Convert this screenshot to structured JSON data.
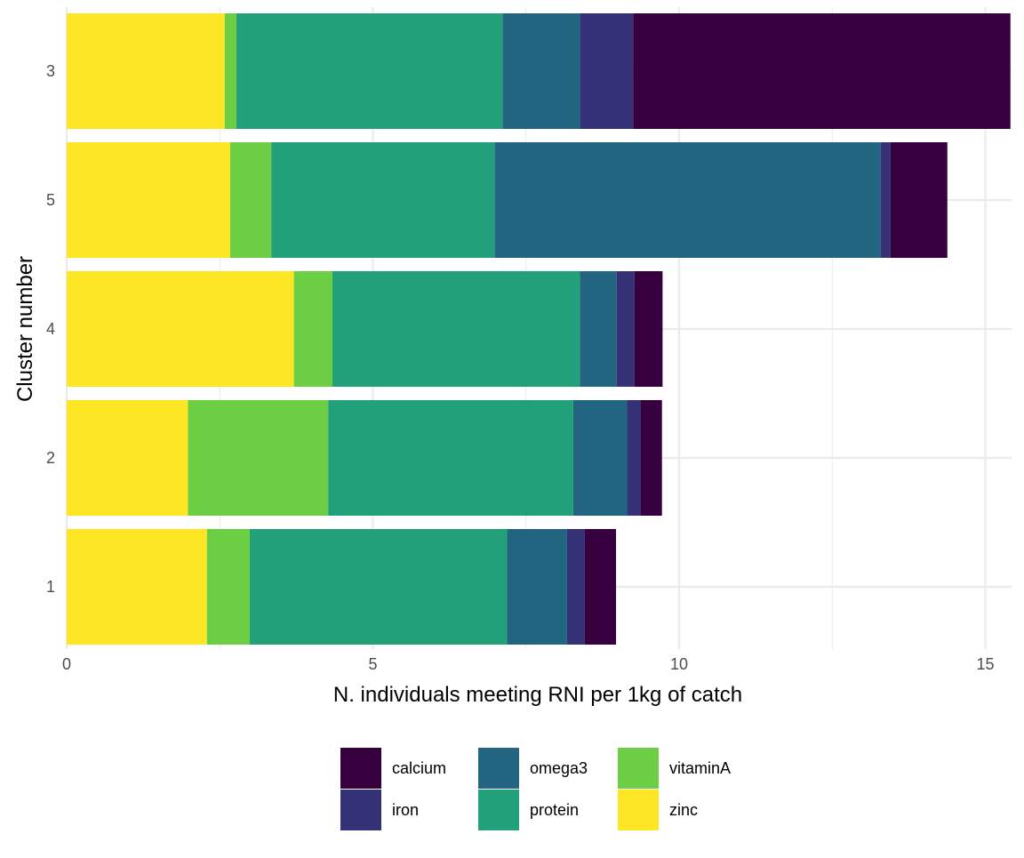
{
  "chart_data": {
    "type": "bar",
    "orientation": "horizontal",
    "stacked": true,
    "xlabel": "N. individuals meeting RNI per 1kg of catch",
    "ylabel": "Cluster number",
    "xlim": [
      0,
      15.4
    ],
    "x_ticks": [
      0,
      5,
      10,
      15
    ],
    "x_tick_labels": [
      "0",
      "5",
      "10",
      "15"
    ],
    "categories": [
      "3",
      "5",
      "4",
      "2",
      "1"
    ],
    "stack_order": [
      "zinc",
      "vitaminA",
      "protein",
      "omega3",
      "iron",
      "calcium"
    ],
    "series": [
      {
        "name": "zinc",
        "color": "#FDE725",
        "values": [
          2.58,
          2.67,
          3.71,
          1.98,
          2.29
        ]
      },
      {
        "name": "vitaminA",
        "color": "#6CCE43",
        "values": [
          0.19,
          0.67,
          0.63,
          2.29,
          0.7
        ]
      },
      {
        "name": "protein",
        "color": "#22A07A",
        "values": [
          4.35,
          3.65,
          4.04,
          4.0,
          4.2
        ]
      },
      {
        "name": "omega3",
        "color": "#226580",
        "values": [
          1.26,
          6.3,
          0.6,
          0.88,
          0.98
        ]
      },
      {
        "name": "iron",
        "color": "#353177",
        "values": [
          0.87,
          0.16,
          0.29,
          0.22,
          0.29
        ]
      },
      {
        "name": "calcium",
        "color": "#36003F",
        "values": [
          6.16,
          0.93,
          0.46,
          0.35,
          0.51
        ]
      }
    ],
    "grid": true,
    "legend": {
      "position": "bottom",
      "columns": [
        [
          "calcium",
          "iron"
        ],
        [
          "omega3",
          "protein"
        ],
        [
          "vitaminA",
          "zinc"
        ]
      ]
    }
  }
}
